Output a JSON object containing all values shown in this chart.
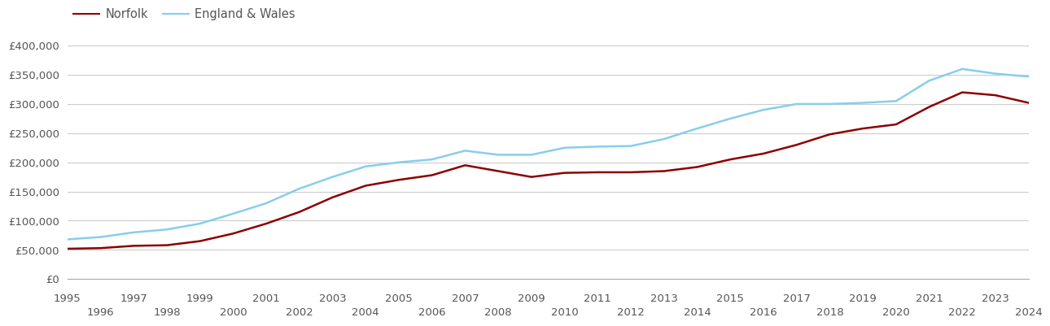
{
  "norfolk_years": [
    1995,
    1996,
    1997,
    1998,
    1999,
    2000,
    2001,
    2002,
    2003,
    2004,
    2005,
    2006,
    2007,
    2008,
    2009,
    2010,
    2011,
    2012,
    2013,
    2014,
    2015,
    2016,
    2017,
    2018,
    2019,
    2020,
    2021,
    2022,
    2023,
    2024
  ],
  "norfolk_values": [
    52000,
    53000,
    57000,
    58000,
    65000,
    78000,
    95000,
    115000,
    140000,
    160000,
    170000,
    178000,
    195000,
    185000,
    175000,
    182000,
    183000,
    183000,
    185000,
    192000,
    205000,
    215000,
    230000,
    248000,
    258000,
    265000,
    295000,
    320000,
    315000,
    302000
  ],
  "england_years": [
    1995,
    1996,
    1997,
    1998,
    1999,
    2000,
    2001,
    2002,
    2003,
    2004,
    2005,
    2006,
    2007,
    2008,
    2009,
    2010,
    2011,
    2012,
    2013,
    2014,
    2015,
    2016,
    2017,
    2018,
    2019,
    2020,
    2021,
    2022,
    2023,
    2024
  ],
  "england_values": [
    68000,
    72000,
    80000,
    85000,
    95000,
    112000,
    130000,
    155000,
    175000,
    193000,
    200000,
    205000,
    220000,
    213000,
    213000,
    225000,
    227000,
    228000,
    240000,
    258000,
    275000,
    290000,
    300000,
    300000,
    302000,
    305000,
    340000,
    360000,
    352000,
    347000
  ],
  "norfolk_color": "#8B0000",
  "england_color": "#87CEEB",
  "norfolk_label": "Norfolk",
  "england_label": "England & Wales",
  "ylim": [
    0,
    420000
  ],
  "yticks": [
    0,
    50000,
    100000,
    150000,
    200000,
    250000,
    300000,
    350000,
    400000
  ],
  "ytick_labels": [
    "£0",
    "£50,000",
    "£100,000",
    "£150,000",
    "£200,000",
    "£250,000",
    "£300,000",
    "£350,000",
    "£400,000"
  ],
  "xticks_top": [
    1995,
    1997,
    1999,
    2001,
    2003,
    2005,
    2007,
    2009,
    2011,
    2013,
    2015,
    2017,
    2019,
    2021,
    2023
  ],
  "xticks_bottom": [
    1996,
    1998,
    2000,
    2002,
    2004,
    2006,
    2008,
    2010,
    2012,
    2014,
    2016,
    2018,
    2020,
    2022,
    2024
  ],
  "background_color": "#ffffff",
  "grid_color": "#cccccc",
  "line_width": 1.8,
  "legend_fontsize": 10.5,
  "tick_fontsize": 9.5,
  "tick_color": "#555555"
}
